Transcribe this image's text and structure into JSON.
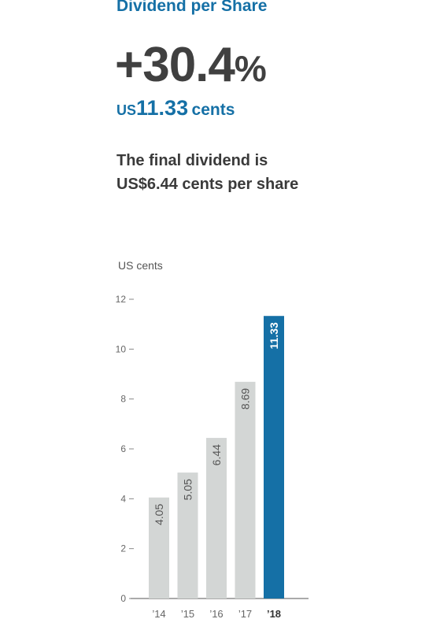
{
  "header": {
    "title": "Dividend per Share",
    "change": "+30.4",
    "change_unit": "%",
    "currency": "US",
    "amount": "11.33",
    "amount_unit": "cents"
  },
  "description": {
    "line1": "The final dividend is",
    "line2": "US$6.44 cents per share"
  },
  "colors": {
    "accent": "#1570a6",
    "bar_default": "#d3d6d5",
    "bar_label": "#555555",
    "highlight_label": "#ffffff"
  },
  "chart_data": {
    "type": "bar",
    "ylabel": "US cents",
    "categories": [
      "’14",
      "’15",
      "’16",
      "’17",
      "’18"
    ],
    "values": [
      4.05,
      5.05,
      6.44,
      8.69,
      11.33
    ],
    "value_labels": [
      "4.05",
      "5.05",
      "6.44",
      "8.69",
      "11.33"
    ],
    "highlight_index": 4,
    "ylim": [
      0,
      12
    ],
    "yticks": [
      0,
      2,
      4,
      6,
      8,
      10,
      12
    ],
    "grid": false,
    "legend": "none"
  }
}
